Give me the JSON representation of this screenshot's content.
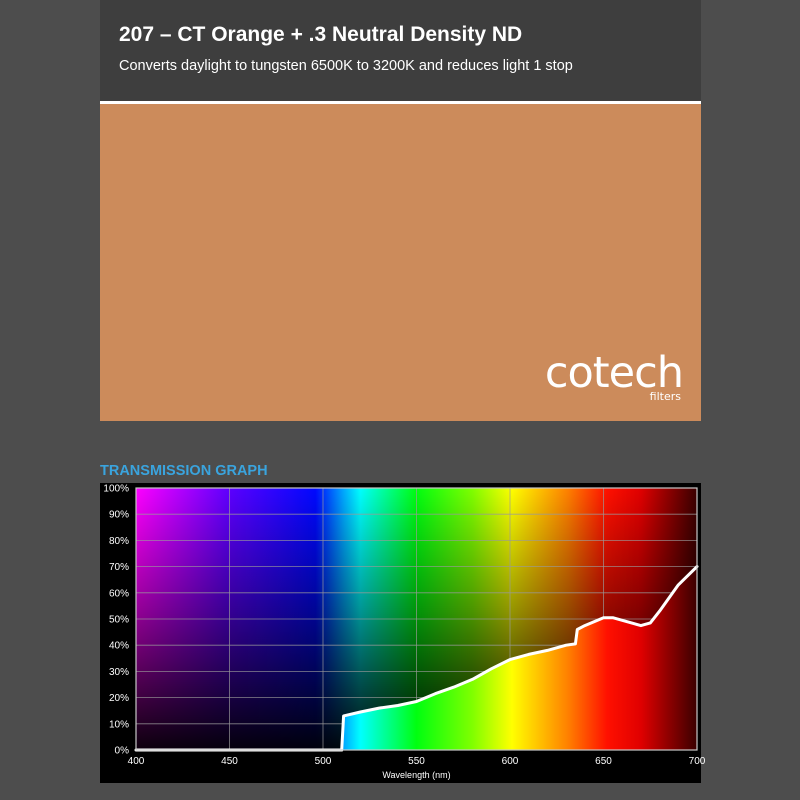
{
  "header": {
    "title": "207 – CT Orange + .3 Neutral Density ND",
    "subtitle": "Converts daylight to tungsten 6500K to 3200K and reduces light 1 stop"
  },
  "swatch": {
    "color": "#cc8b5b"
  },
  "logo": {
    "main": "cotech",
    "sub": "filters"
  },
  "graph": {
    "heading": "TRANSMISSION GRAPH"
  },
  "colors": {
    "accent": "#3aa4de",
    "background": "#4d4d4d",
    "header_bg": "#3e3e3e",
    "curve": "#ffffff"
  },
  "chart_data": {
    "type": "area",
    "title": "",
    "xlabel": "Wavelength (nm)",
    "ylabel": "",
    "xlim": [
      400,
      700
    ],
    "ylim": [
      0,
      100
    ],
    "grid": true,
    "x_ticks": [
      400,
      450,
      500,
      550,
      600,
      650,
      700
    ],
    "y_ticks": [
      0,
      10,
      20,
      30,
      40,
      50,
      60,
      70,
      80,
      90,
      100
    ],
    "y_tick_labels": [
      "0%",
      "10%",
      "20%",
      "30%",
      "40%",
      "50%",
      "60%",
      "70%",
      "80%",
      "90%",
      "100%"
    ],
    "series": [
      {
        "x": [
          400,
          510,
          511,
          520,
          530,
          540,
          550,
          560,
          570,
          580,
          590,
          600,
          610,
          620,
          630,
          635,
          636,
          640,
          650,
          655,
          660,
          670,
          675,
          680,
          690,
          700
        ],
        "y": [
          0,
          0,
          13,
          14.5,
          16,
          17,
          18.5,
          21.5,
          24,
          27,
          31,
          34.5,
          36.5,
          38,
          40,
          40.5,
          46,
          47.5,
          50.5,
          50.5,
          49.5,
          47.5,
          48.5,
          53,
          63,
          70
        ]
      }
    ]
  }
}
